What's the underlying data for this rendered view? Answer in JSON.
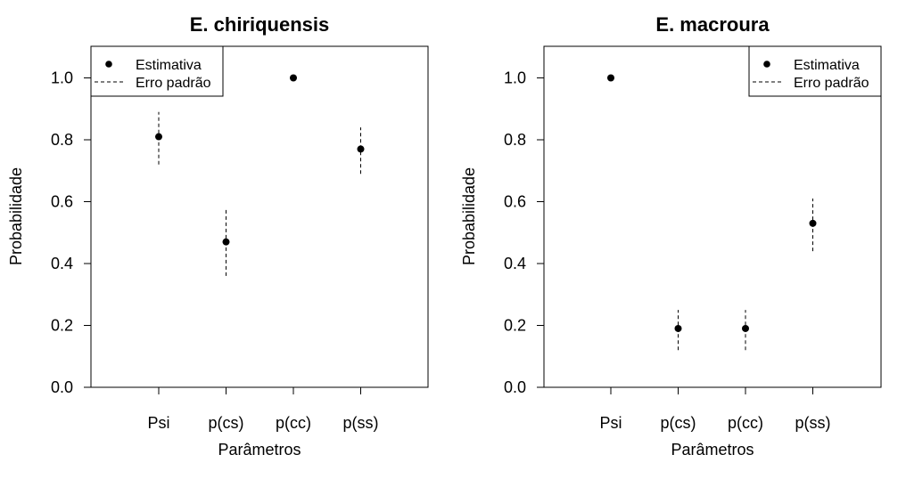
{
  "chart_data": [
    {
      "type": "scatter",
      "title": "E. chiriquensis",
      "xlabel": "Parâmetros",
      "ylabel": "Probabilidade",
      "categories": [
        "Psi",
        "p(cs)",
        "p(cc)",
        "p(ss)"
      ],
      "ylim": [
        0,
        1.1
      ],
      "yticks": [
        "0.0",
        "0.2",
        "0.4",
        "0.6",
        "0.8",
        "1.0"
      ],
      "legend": {
        "position": "top-left",
        "entries": [
          "Estimativa",
          "Erro padrão"
        ]
      },
      "series": [
        {
          "name": "Estimativa",
          "values": [
            0.81,
            0.47,
            1.0,
            0.77
          ]
        },
        {
          "name": "Erro padrão",
          "lower": [
            0.72,
            0.36,
            null,
            0.69
          ],
          "upper": [
            0.89,
            0.58,
            null,
            0.84
          ]
        }
      ]
    },
    {
      "type": "scatter",
      "title": "E. macroura",
      "xlabel": "Parâmetros",
      "ylabel": "Probabilidade",
      "categories": [
        "Psi",
        "p(cs)",
        "p(cc)",
        "p(ss)"
      ],
      "ylim": [
        0,
        1.1
      ],
      "yticks": [
        "0.0",
        "0.2",
        "0.4",
        "0.6",
        "0.8",
        "1.0"
      ],
      "legend": {
        "position": "top-right",
        "entries": [
          "Estimativa",
          "Erro padrão"
        ]
      },
      "series": [
        {
          "name": "Estimativa",
          "values": [
            1.0,
            0.19,
            0.19,
            0.53
          ]
        },
        {
          "name": "Erro padrão",
          "lower": [
            null,
            0.12,
            0.12,
            0.44
          ],
          "upper": [
            null,
            0.25,
            0.25,
            0.61
          ]
        }
      ]
    }
  ]
}
